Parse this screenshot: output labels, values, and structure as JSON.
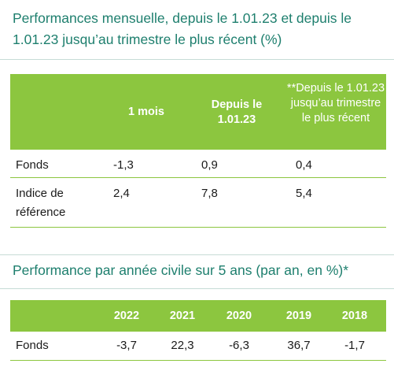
{
  "monthly": {
    "title": "Performances mensuelle, depuis le 1.01.23 et depuis le 1.01.23 jusqu’au trimestre le plus récent (%)",
    "headers": {
      "col1": "1 mois",
      "col2": "Depuis le 1.01.23",
      "col3": "**Depuis le 1.01.23 jusqu’au trimestre le plus récent"
    },
    "rows": [
      {
        "label": "Fonds",
        "values": [
          "-1,3",
          "0,9",
          "0,4"
        ]
      },
      {
        "label": "Indice de référence",
        "values": [
          "2,4",
          "7,8",
          "5,4"
        ]
      }
    ]
  },
  "annual": {
    "title": "Performance par année civile sur 5 ans (par an, en %)*",
    "years": [
      "2022",
      "2021",
      "2020",
      "2019",
      "2018"
    ],
    "rows": [
      {
        "label": "Fonds",
        "values": [
          "-3,7",
          "22,3",
          "-6,3",
          "36,7",
          "-1,7"
        ]
      }
    ]
  },
  "colors": {
    "title": "#1e7f6e",
    "header_bg": "#8cc63f",
    "header_text": "#ffffff",
    "rule": "#c6dcd6"
  }
}
